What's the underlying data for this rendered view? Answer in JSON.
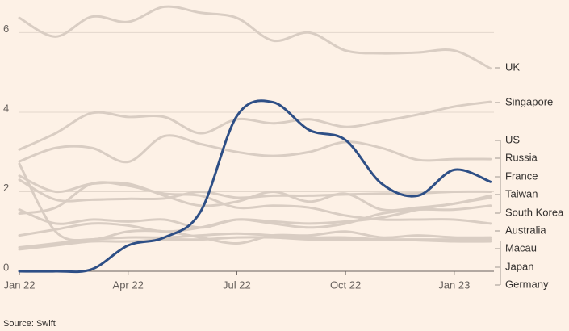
{
  "chart_data": {
    "type": "line",
    "source": "Source: Swift",
    "categories": [
      "Jan 22",
      null,
      null,
      "Apr 22",
      null,
      null,
      "Jul 22",
      null,
      null,
      "Oct 22",
      null,
      null,
      "Jan 23",
      null
    ],
    "ylim": [
      0,
      6.8
    ],
    "yticks": [
      0,
      2,
      4,
      6
    ],
    "grid": true,
    "series": [
      {
        "name": "UK",
        "color": "#d9cdc3",
        "values": [
          6.37,
          5.9,
          6.4,
          6.27,
          6.65,
          6.5,
          6.37,
          5.8,
          6.0,
          5.55,
          5.48,
          5.5,
          5.55,
          5.1
        ]
      },
      {
        "name": "Singapore",
        "color": "#d9cdc3",
        "values": [
          3.06,
          3.47,
          3.98,
          3.88,
          3.88,
          3.47,
          3.82,
          3.72,
          3.82,
          3.63,
          3.77,
          3.94,
          4.14,
          4.26
        ]
      },
      {
        "name": "US",
        "color": "#d9cdc3",
        "values": [
          2.76,
          3.1,
          3.1,
          2.75,
          3.4,
          3.2,
          3.0,
          2.9,
          3.0,
          3.25,
          3.1,
          2.8,
          2.82,
          2.82
        ]
      },
      {
        "name": "Russia",
        "color": "#d9cdc3",
        "values": [
          2.3,
          1.8,
          1.8,
          1.82,
          1.83,
          2.0,
          1.85,
          1.9,
          1.9,
          1.93,
          1.95,
          1.96,
          2.0,
          2.0
        ]
      },
      {
        "name": "France",
        "color": "#d9cdc3",
        "values": [
          2.4,
          2.0,
          2.2,
          2.2,
          1.9,
          1.65,
          1.75,
          2.0,
          1.75,
          1.95,
          1.55,
          1.6,
          1.7,
          1.9
        ]
      },
      {
        "name": "Taiwan",
        "color": "#d9cdc3",
        "values": [
          1.55,
          1.2,
          1.3,
          1.25,
          1.3,
          1.1,
          1.3,
          1.25,
          1.2,
          1.25,
          1.35,
          1.55,
          1.7,
          1.85
        ]
      },
      {
        "name": "South Korea",
        "color": "#d9cdc3",
        "values": [
          0.9,
          1.05,
          1.2,
          1.15,
          1.0,
          1.1,
          1.3,
          1.2,
          1.1,
          1.2,
          1.45,
          1.55,
          1.55,
          1.65
        ]
      },
      {
        "name": "Australia",
        "color": "#d9cdc3",
        "values": [
          1.45,
          1.6,
          2.2,
          2.15,
          1.95,
          1.9,
          1.6,
          1.65,
          1.6,
          1.4,
          1.3,
          1.3,
          1.3,
          1.2
        ]
      },
      {
        "name": "Macau",
        "color": "#d9cdc3",
        "values": [
          2.7,
          1.0,
          0.8,
          1.0,
          1.0,
          0.85,
          0.7,
          0.9,
          0.9,
          1.0,
          0.85,
          0.9,
          0.85,
          0.85
        ]
      },
      {
        "name": "Japan",
        "color": "#d9cdc3",
        "values": [
          0.6,
          0.7,
          0.8,
          0.85,
          0.85,
          0.9,
          0.95,
          0.9,
          0.85,
          0.85,
          0.8,
          0.8,
          0.8,
          0.8
        ]
      },
      {
        "name": "Germany",
        "color": "#d9cdc3",
        "values": [
          0.55,
          0.65,
          0.75,
          0.75,
          0.8,
          0.8,
          0.85,
          0.85,
          0.8,
          0.8,
          0.8,
          0.78,
          0.75,
          0.75
        ]
      },
      {
        "color": "#2e4f86",
        "values": [
          0,
          0,
          0.05,
          0.65,
          0.85,
          1.5,
          3.9,
          4.25,
          3.55,
          3.3,
          2.2,
          1.9,
          2.55,
          2.25
        ]
      }
    ]
  }
}
